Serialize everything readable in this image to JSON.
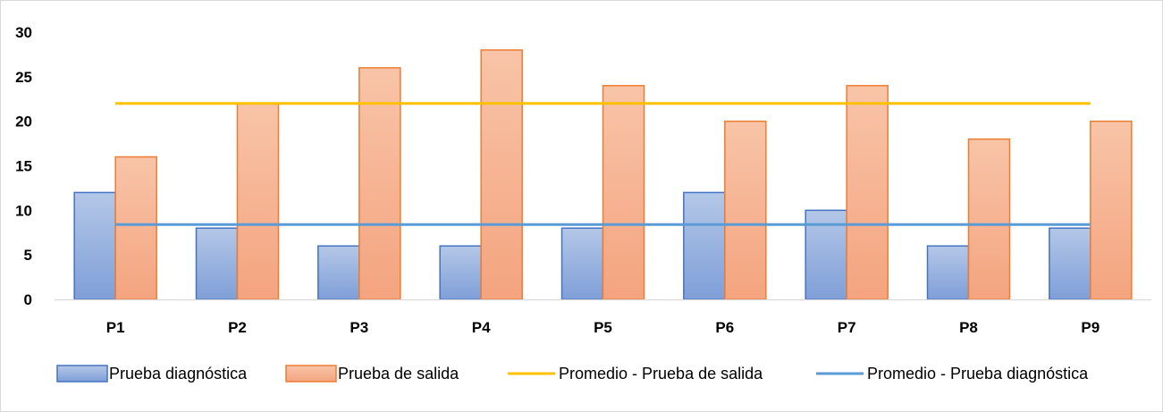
{
  "chart_data": {
    "type": "bar",
    "categories": [
      "P1",
      "P2",
      "P3",
      "P4",
      "P5",
      "P6",
      "P7",
      "P8",
      "P9"
    ],
    "series": [
      {
        "name": "Prueba diagnóstica",
        "values": [
          12,
          8,
          6,
          6,
          8,
          12,
          10,
          6,
          8
        ],
        "color": "#8faadc"
      },
      {
        "name": "Prueba de salida",
        "values": [
          16,
          22,
          26,
          28,
          24,
          20,
          24,
          18,
          20
        ],
        "color": "#f4b183"
      }
    ],
    "lines": [
      {
        "name": "Promedio - Prueba de salida",
        "value": 22,
        "color": "#ffc000"
      },
      {
        "name": "Promedio - Prueba diagnóstica",
        "value": 8.4,
        "color": "#5b9bd5"
      }
    ],
    "yticks": [
      "0",
      "5",
      "10",
      "15",
      "20",
      "25",
      "30"
    ],
    "ylim": [
      0,
      30
    ],
    "grid": false,
    "legend_position": "bottom"
  }
}
